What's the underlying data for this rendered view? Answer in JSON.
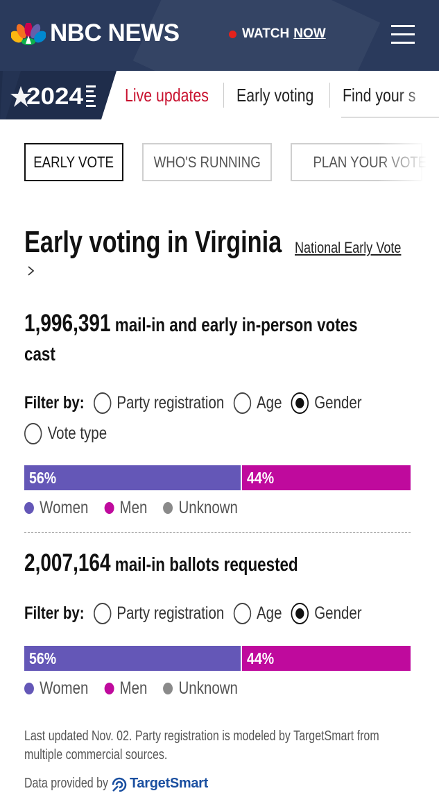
{
  "header": {
    "brand": "NBC NEWS",
    "watch_label": "WATCH",
    "watch_now": "NOW",
    "live_dot_color": "#e4221c",
    "bg_color": "#2a3a5c"
  },
  "nav": {
    "badge_text": "2024",
    "items": [
      {
        "label": "Live updates",
        "color": "#c8102e"
      },
      {
        "label": "Early voting",
        "color": "#222222"
      },
      {
        "label": "Find your s",
        "color": "#222222"
      }
    ]
  },
  "tabs": [
    {
      "label": "EARLY VOTE",
      "active": true
    },
    {
      "label": "WHO'S RUNNING",
      "active": false
    },
    {
      "label": "PLAN YOUR VOTE",
      "active": false
    }
  ],
  "page": {
    "title": "Early voting in Virginia",
    "national_link": "National Early Vote"
  },
  "section1": {
    "count": "1,996,391",
    "label": " mail-in and early in-person votes",
    "label2": "cast",
    "filter_label": "Filter by:",
    "filters": [
      {
        "label": "Party registration",
        "selected": false
      },
      {
        "label": "Age",
        "selected": false
      },
      {
        "label": "Gender",
        "selected": true
      },
      {
        "label": "Vote type",
        "selected": false
      }
    ],
    "bar": [
      {
        "name": "Women",
        "share": 56,
        "label": "56%",
        "color": "#6457b7"
      },
      {
        "name": "Men",
        "share": 44,
        "label": "44%",
        "color": "#bf0a9d"
      }
    ],
    "legend": [
      {
        "label": "Women",
        "color": "#6457b7"
      },
      {
        "label": "Men",
        "color": "#bf0a9d"
      },
      {
        "label": "Unknown",
        "color": "#8a8a8a"
      }
    ]
  },
  "section2": {
    "count": "2,007,164",
    "label": " mail-in ballots requested",
    "filter_label": "Filter by:",
    "filters": [
      {
        "label": "Party registration",
        "selected": false
      },
      {
        "label": "Age",
        "selected": false
      },
      {
        "label": "Gender",
        "selected": true
      }
    ],
    "bar": [
      {
        "name": "Women",
        "share": 56,
        "label": "56%",
        "color": "#6457b7"
      },
      {
        "name": "Men",
        "share": 44,
        "label": "44%",
        "color": "#bf0a9d"
      }
    ],
    "legend": [
      {
        "label": "Women",
        "color": "#6457b7"
      },
      {
        "label": "Men",
        "color": "#bf0a9d"
      },
      {
        "label": "Unknown",
        "color": "#8a8a8a"
      }
    ]
  },
  "footer": {
    "note": "Last updated Nov. 02. Party registration is modeled by TargetSmart from multiple commercial sources.",
    "provided_by": "Data provided by",
    "provider": "TargetSmart"
  }
}
